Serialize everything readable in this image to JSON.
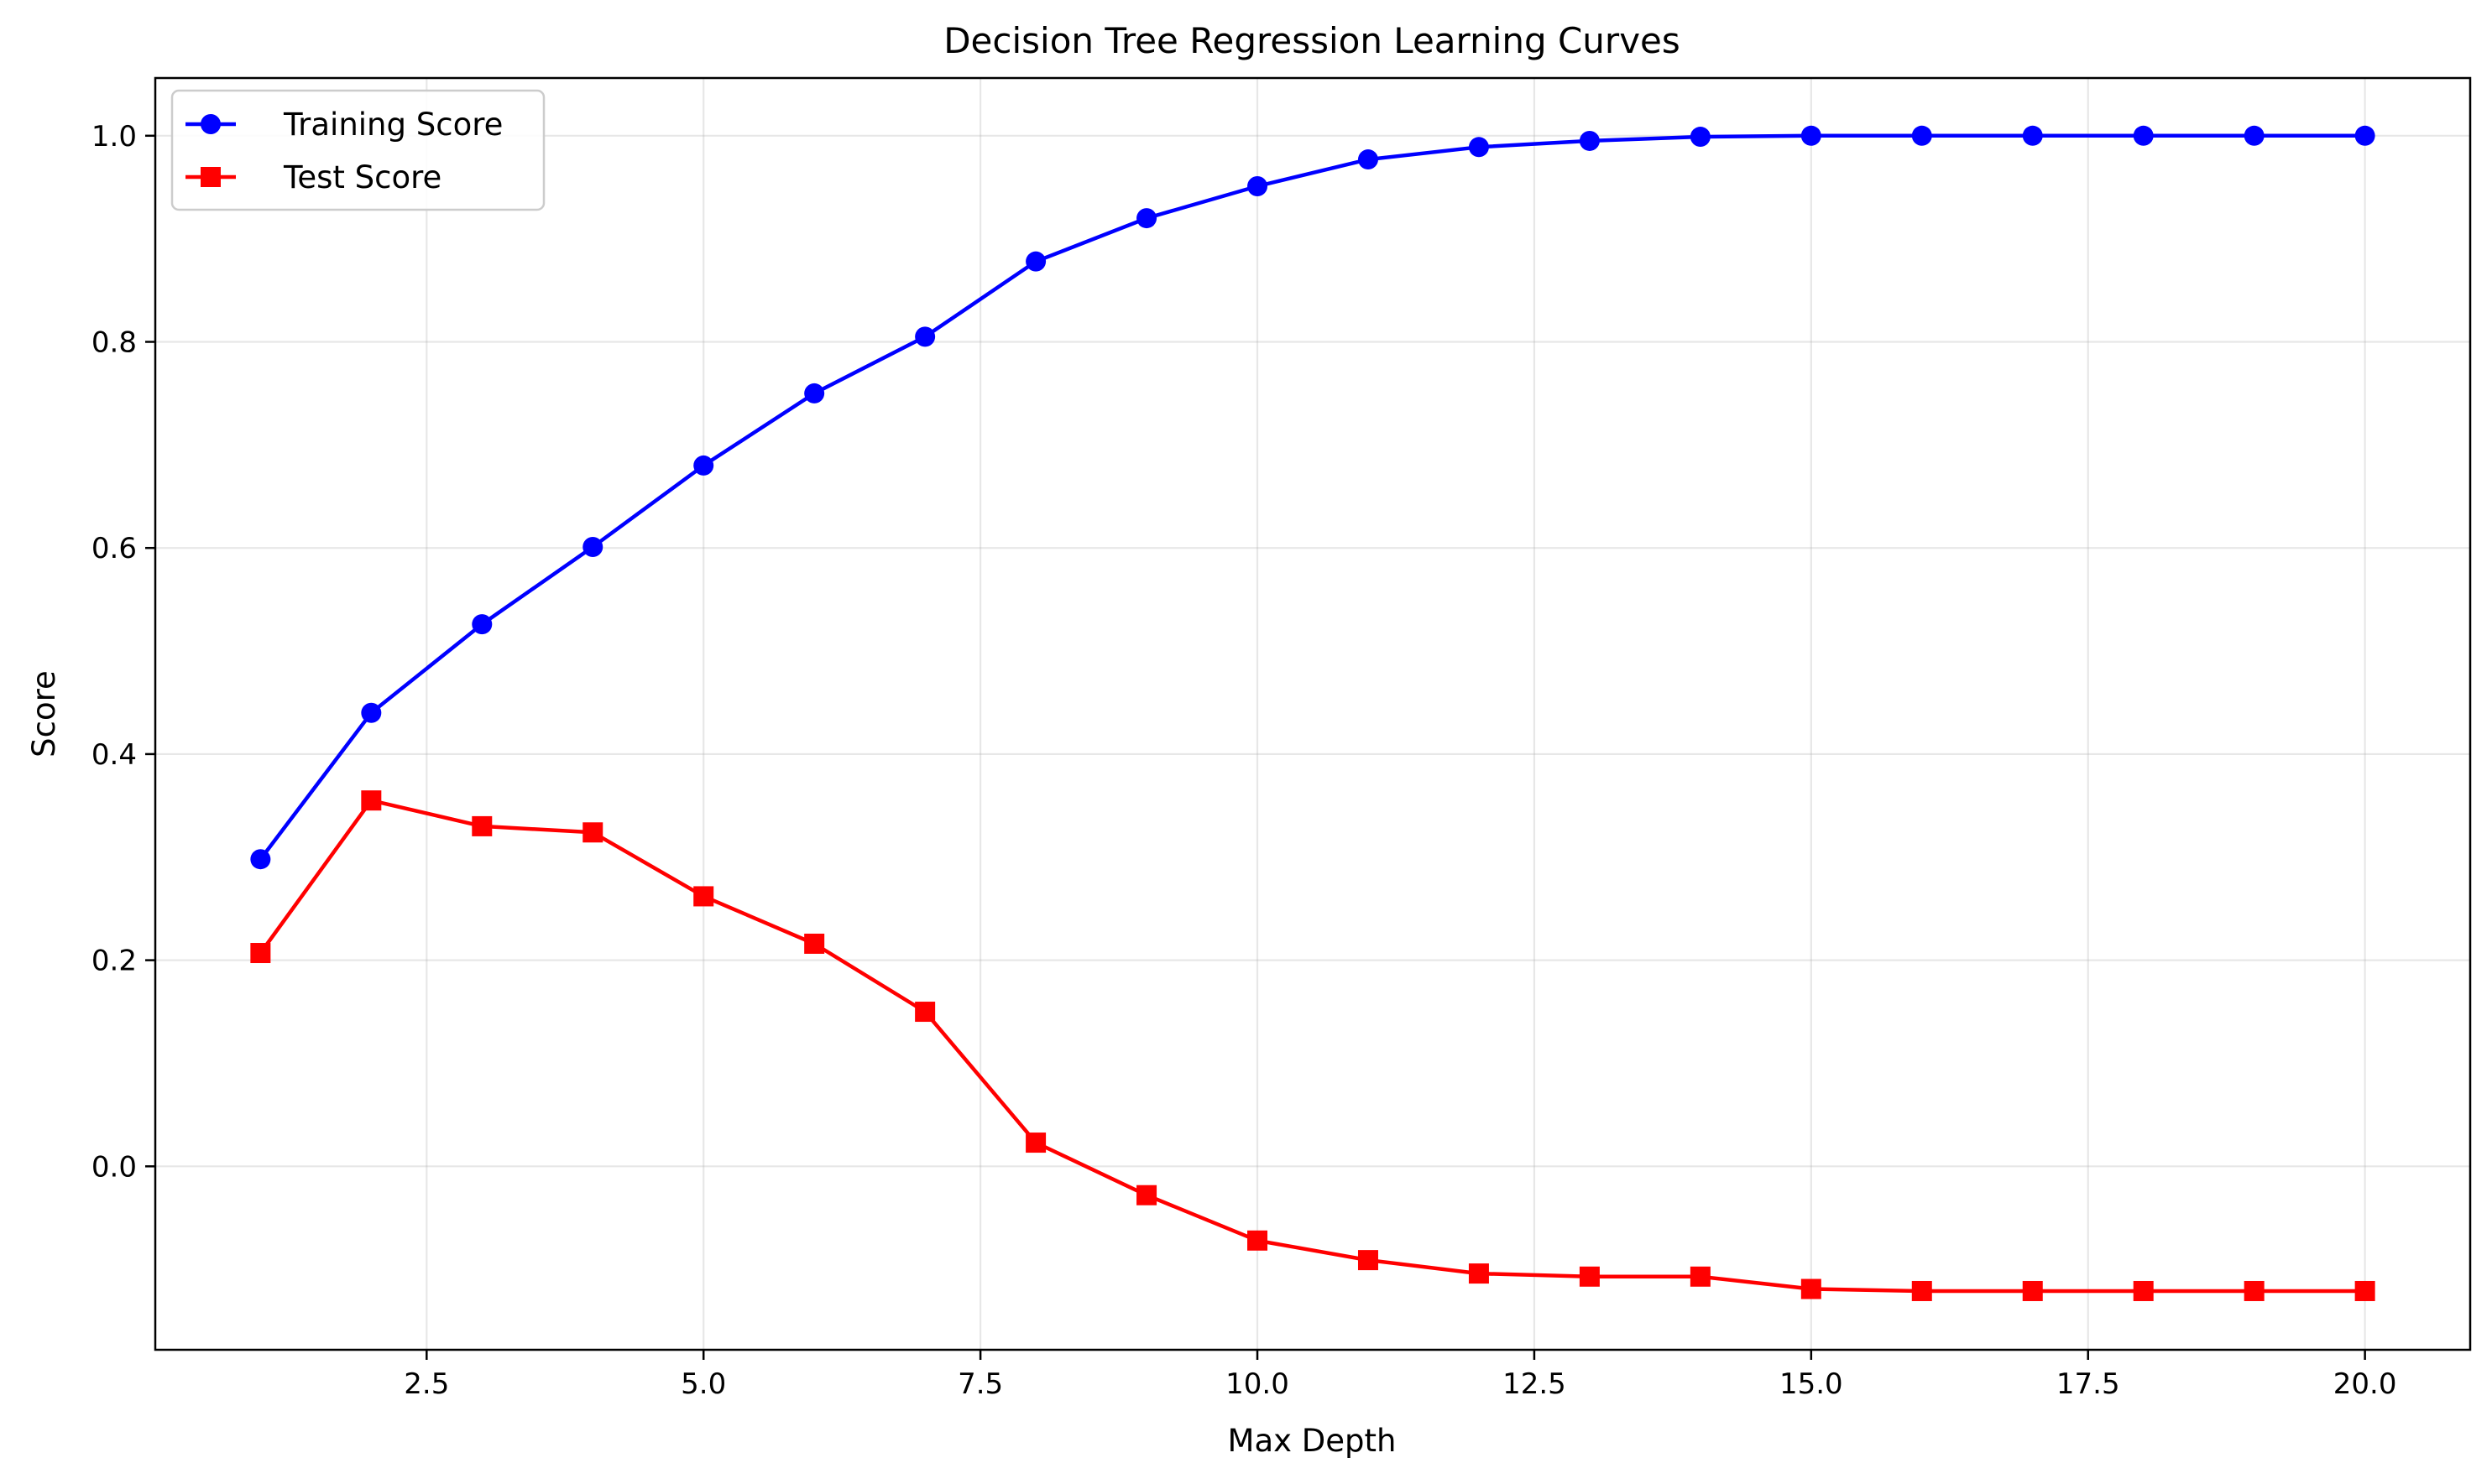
{
  "chart_data": {
    "type": "line",
    "title": "Decision Tree Regression Learning Curves",
    "xlabel": "Max Depth",
    "ylabel": "Score",
    "xlim": [
      0.05,
      20.95
    ],
    "ylim": [
      -0.178,
      1.056
    ],
    "x_ticks": [
      "2.5",
      "5.0",
      "7.5",
      "10.0",
      "12.5",
      "15.0",
      "17.5",
      "20.0"
    ],
    "y_ticks": [
      "0.0",
      "0.2",
      "0.4",
      "0.6",
      "0.8",
      "1.0"
    ],
    "grid": true,
    "legend_position": "top-left",
    "x": [
      1,
      2,
      3,
      4,
      5,
      6,
      7,
      8,
      9,
      10,
      11,
      12,
      13,
      14,
      15,
      16,
      17,
      18,
      19,
      20
    ],
    "series": [
      {
        "name": "Training Score",
        "color": "#0000ff",
        "marker": "circle",
        "values": [
          0.298,
          0.44,
          0.526,
          0.601,
          0.68,
          0.75,
          0.805,
          0.878,
          0.92,
          0.951,
          0.977,
          0.989,
          0.995,
          0.999,
          1.0,
          1.0,
          1.0,
          1.0,
          1.0,
          1.0
        ]
      },
      {
        "name": "Test Score",
        "color": "#ff0000",
        "marker": "square",
        "values": [
          0.207,
          0.355,
          0.33,
          0.324,
          0.262,
          0.216,
          0.15,
          0.023,
          -0.028,
          -0.072,
          -0.091,
          -0.104,
          -0.107,
          -0.107,
          -0.119,
          -0.121,
          -0.121,
          -0.121,
          -0.121,
          -0.121
        ]
      }
    ]
  }
}
